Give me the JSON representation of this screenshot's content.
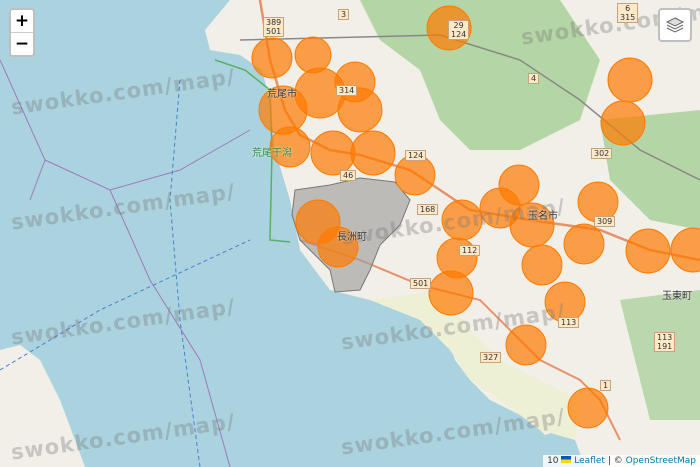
{
  "controls": {
    "zoom_in": "+",
    "zoom_out": "−",
    "layers_icon": "layers-icon"
  },
  "attribution": {
    "scale_text": "10",
    "leaflet": "Leaflet",
    "separator": "|",
    "copyright": "©",
    "osm": "OpenStreetMap"
  },
  "watermark": "swokko.com/map/",
  "places": {
    "arao": "荒尾市",
    "arao_tidal": "荒尾干潟",
    "nagasu": "長洲町",
    "tamana": "玉名市",
    "gyokuto": "玉東町"
  },
  "roads": [
    "389\n501",
    "3",
    "29\n124",
    "314",
    "46",
    "124",
    "168",
    "112",
    "501",
    "327",
    "302",
    "309",
    "6\n315",
    "4",
    "113\n191",
    "1",
    "113"
  ],
  "colors": {
    "sea": "#aad3df",
    "land": "#f2efe9",
    "overlay": "#ff7a00",
    "highlight_area": "#9e9e9e",
    "forest": "#add19e"
  }
}
